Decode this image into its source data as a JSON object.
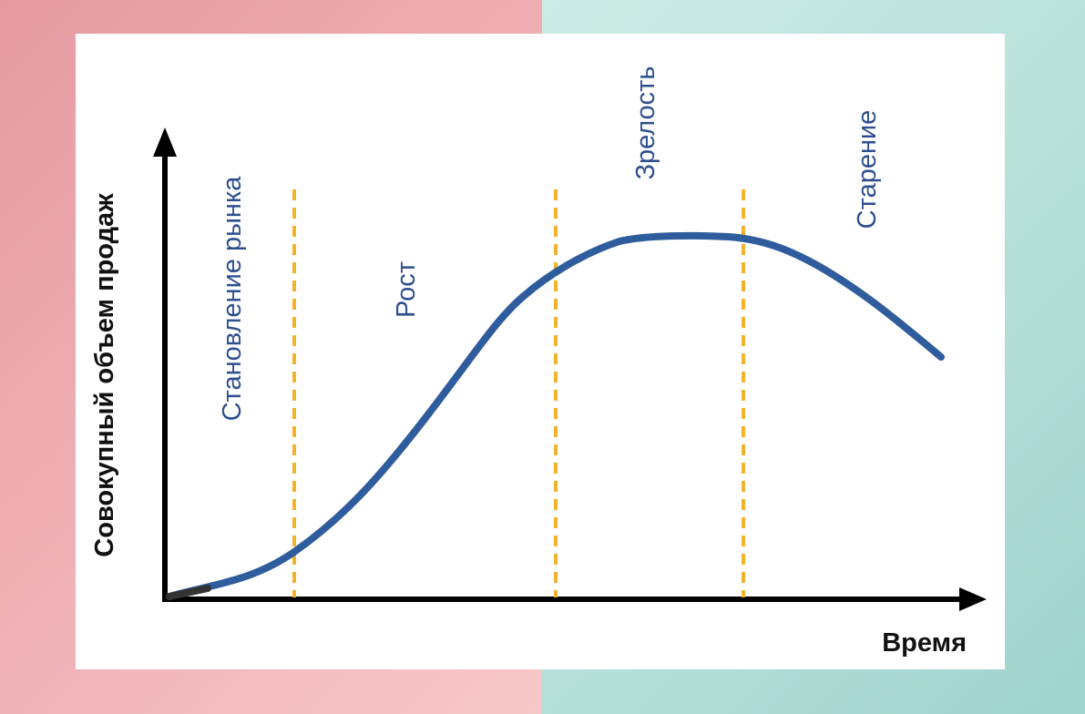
{
  "chart_data": {
    "type": "line",
    "xlabel": "Время",
    "ylabel": "Совокупный объем продаж",
    "stages": [
      "Становление рынка",
      "Рост",
      "Зрелость",
      "Старение"
    ],
    "grid": false,
    "legend": "none"
  },
  "colors": {
    "curve": "#2f5c9c",
    "divider": "#f2b32a",
    "axis": "#000000",
    "stage_text": "#2d4f8e"
  }
}
